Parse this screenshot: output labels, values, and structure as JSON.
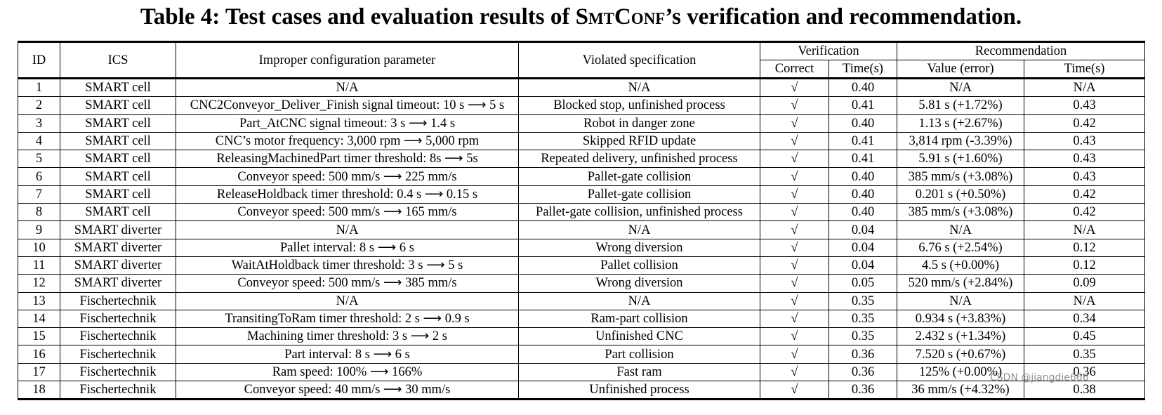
{
  "title": {
    "before": "Table 4: Test cases and evaluation results of ",
    "name": "SmtConf",
    "after": "’s verification and recommendation."
  },
  "table": {
    "header": {
      "top": [
        "ID",
        "ICS",
        "Improper configuration parameter",
        "Violated specification",
        "Verification",
        "Recommendation"
      ],
      "sub": [
        "Correct",
        "Time(s)",
        "Value (error)",
        "Time(s)"
      ]
    },
    "rows": [
      [
        "1",
        "SMART cell",
        "N/A",
        "N/A",
        "√",
        "0.40",
        "N/A",
        "N/A"
      ],
      [
        "2",
        "SMART cell",
        "CNC2Conveyor_Deliver_Finish signal timeout: 10 s ⟶ 5 s",
        "Blocked stop, unfinished process",
        "√",
        "0.41",
        "5.81 s (+1.72%)",
        "0.43"
      ],
      [
        "3",
        "SMART cell",
        "Part_AtCNC signal timeout: 3 s ⟶ 1.4 s",
        "Robot in danger zone",
        "√",
        "0.40",
        "1.13 s (+2.67%)",
        "0.42"
      ],
      [
        "4",
        "SMART cell",
        "CNC’s motor frequency: 3,000 rpm ⟶ 5,000 rpm",
        "Skipped RFID update",
        "√",
        "0.41",
        "3,814 rpm (-3.39%)",
        "0.43"
      ],
      [
        "5",
        "SMART cell",
        "ReleasingMachinedPart timer threshold: 8s ⟶ 5s",
        "Repeated delivery, unfinished process",
        "√",
        "0.41",
        "5.91 s (+1.60%)",
        "0.43"
      ],
      [
        "6",
        "SMART cell",
        "Conveyor speed: 500 mm/s ⟶ 225 mm/s",
        "Pallet-gate collision",
        "√",
        "0.40",
        "385 mm/s (+3.08%)",
        "0.43"
      ],
      [
        "7",
        "SMART cell",
        "ReleaseHoldback timer threshold: 0.4 s ⟶ 0.15 s",
        "Pallet-gate collision",
        "√",
        "0.40",
        "0.201 s (+0.50%)",
        "0.42"
      ],
      [
        "8",
        "SMART cell",
        "Conveyor speed: 500 mm/s ⟶ 165 mm/s",
        "Pallet-gate collision, unfinished process",
        "√",
        "0.40",
        "385 mm/s (+3.08%)",
        "0.42"
      ],
      [
        "9",
        "SMART diverter",
        "N/A",
        "N/A",
        "√",
        "0.04",
        "N/A",
        "N/A"
      ],
      [
        "10",
        "SMART diverter",
        "Pallet interval: 8 s ⟶ 6 s",
        "Wrong diversion",
        "√",
        "0.04",
        "6.76 s (+2.54%)",
        "0.12"
      ],
      [
        "11",
        "SMART diverter",
        "WaitAtHoldback timer threshold: 3 s ⟶ 5 s",
        "Pallet collision",
        "√",
        "0.04",
        "4.5 s (+0.00%)",
        "0.12"
      ],
      [
        "12",
        "SMART diverter",
        "Conveyor speed: 500 mm/s ⟶ 385 mm/s",
        "Wrong diversion",
        "√",
        "0.05",
        "520 mm/s (+2.84%)",
        "0.09"
      ],
      [
        "13",
        "Fischertechnik",
        "N/A",
        "N/A",
        "√",
        "0.35",
        "N/A",
        "N/A"
      ],
      [
        "14",
        "Fischertechnik",
        "TransitingToRam timer threshold: 2 s ⟶ 0.9 s",
        "Ram-part collision",
        "√",
        "0.35",
        "0.934 s (+3.83%)",
        "0.34"
      ],
      [
        "15",
        "Fischertechnik",
        "Machining timer threshold: 3 s ⟶ 2 s",
        "Unfinished CNC",
        "√",
        "0.35",
        "2.432 s (+1.34%)",
        "0.45"
      ],
      [
        "16",
        "Fischertechnik",
        "Part interval: 8 s ⟶ 6 s",
        "Part collision",
        "√",
        "0.36",
        "7.520 s (+0.67%)",
        "0.35"
      ],
      [
        "17",
        "Fischertechnik",
        "Ram speed: 100% ⟶ 166%",
        "Fast ram",
        "√",
        "0.36",
        "125% (+0.00%)",
        "0.36"
      ],
      [
        "18",
        "Fischertechnik",
        "Conveyor speed: 40 mm/s ⟶ 30 mm/s",
        "Unfinished process",
        "√",
        "0.36",
        "36 mm/s (+4.32%)",
        "0.38"
      ]
    ]
  },
  "watermark": "CSDN @jiangdie666"
}
